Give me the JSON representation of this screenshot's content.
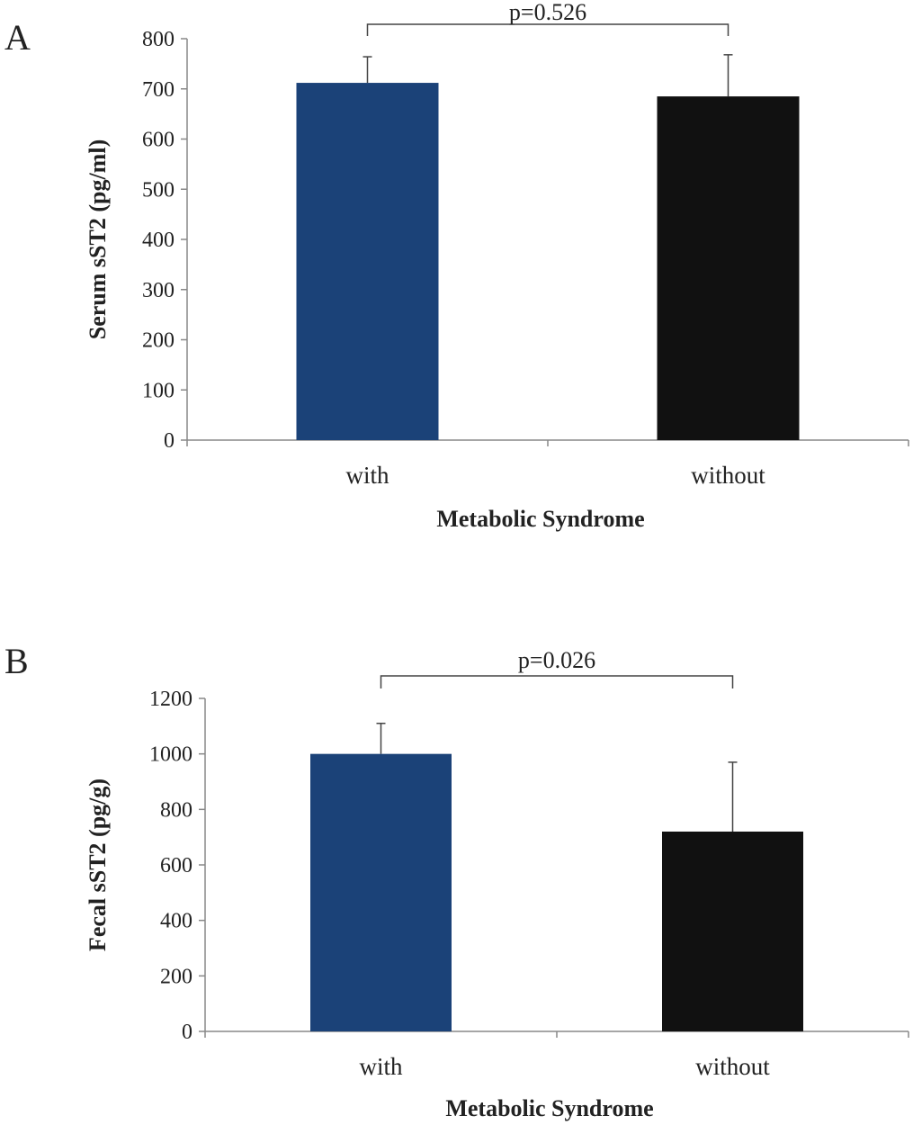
{
  "chart_data": [
    {
      "type": "bar",
      "panel_label": "A",
      "categories": [
        "with",
        "without"
      ],
      "values": [
        712,
        685
      ],
      "error_upper": [
        764,
        768
      ],
      "colors": [
        "#1b4278",
        "#111111"
      ],
      "xlabel": "Metabolic Syndrome",
      "ylabel": "Serum sST2 (pg/ml)",
      "ylim": [
        0,
        800
      ],
      "yticks": [
        0,
        100,
        200,
        300,
        400,
        500,
        600,
        700,
        800
      ],
      "annotation": "p=0.526",
      "grid": false
    },
    {
      "type": "bar",
      "panel_label": "B",
      "categories": [
        "with",
        "without"
      ],
      "values": [
        1000,
        720
      ],
      "error_upper": [
        1110,
        970
      ],
      "colors": [
        "#1b4278",
        "#111111"
      ],
      "xlabel": "Metabolic Syndrome",
      "ylabel": "Fecal sST2 (pg/g)",
      "ylim": [
        0,
        1200
      ],
      "yticks": [
        0,
        200,
        400,
        600,
        800,
        1000,
        1200
      ],
      "annotation": "p=0.026",
      "grid": false
    }
  ]
}
